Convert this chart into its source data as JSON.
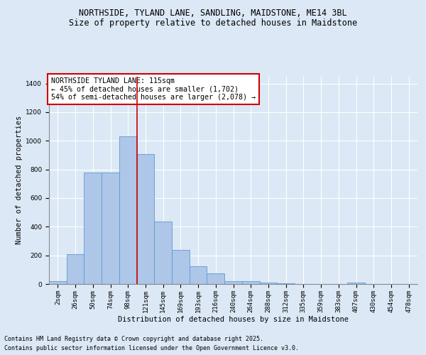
{
  "title_line1": "NORTHSIDE, TYLAND LANE, SANDLING, MAIDSTONE, ME14 3BL",
  "title_line2": "Size of property relative to detached houses in Maidstone",
  "xlabel": "Distribution of detached houses by size in Maidstone",
  "ylabel": "Number of detached properties",
  "bar_color": "#aec6e8",
  "bar_edge_color": "#5b9bd5",
  "background_color": "#dce8f5",
  "grid_color": "#ffffff",
  "categories": [
    "2sqm",
    "26sqm",
    "50sqm",
    "74sqm",
    "98sqm",
    "121sqm",
    "145sqm",
    "169sqm",
    "193sqm",
    "216sqm",
    "240sqm",
    "264sqm",
    "288sqm",
    "312sqm",
    "335sqm",
    "359sqm",
    "383sqm",
    "407sqm",
    "430sqm",
    "454sqm",
    "478sqm"
  ],
  "values": [
    18,
    210,
    780,
    780,
    1030,
    905,
    435,
    240,
    125,
    75,
    22,
    22,
    12,
    5,
    0,
    0,
    0,
    10,
    0,
    0,
    0
  ],
  "ylim": [
    0,
    1450
  ],
  "yticks": [
    0,
    200,
    400,
    600,
    800,
    1000,
    1200,
    1400
  ],
  "vline_position": 4.5,
  "annotation_text": "NORTHSIDE TYLAND LANE: 115sqm\n← 45% of detached houses are smaller (1,702)\n54% of semi-detached houses are larger (2,078) →",
  "annotation_box_color": "#ffffff",
  "annotation_box_edge": "#cc0000",
  "vline_color": "#cc0000",
  "footer_line1": "Contains HM Land Registry data © Crown copyright and database right 2025.",
  "footer_line2": "Contains public sector information licensed under the Open Government Licence v3.0.",
  "title_fontsize": 8.5,
  "subtitle_fontsize": 8.5,
  "annotation_fontsize": 7.2,
  "axis_label_fontsize": 7.5,
  "tick_fontsize": 6.5,
  "footer_fontsize": 6.0
}
